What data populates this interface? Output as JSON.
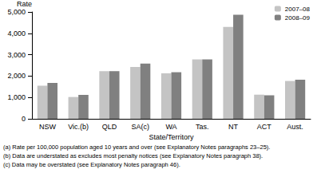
{
  "chart_data": {
    "type": "bar",
    "y_label": "Rate",
    "x_label": "State/Territory",
    "categories": [
      "NSW",
      "Vic.(b)",
      "QLD",
      "SA(c)",
      "WA",
      "Tas.",
      "NT",
      "ACT",
      "Aust."
    ],
    "series": [
      {
        "name": "2007–08",
        "color": "#c4c4c4",
        "values": [
          1550,
          1020,
          2230,
          2430,
          2130,
          2780,
          4300,
          1130,
          1770
        ]
      },
      {
        "name": "2008–09",
        "color": "#808080",
        "values": [
          1680,
          1120,
          2230,
          2580,
          2180,
          2780,
          4870,
          1100,
          1830
        ]
      }
    ],
    "ylim": [
      0,
      5000
    ],
    "yticks": [
      0,
      1000,
      2000,
      3000,
      4000,
      5000
    ],
    "grid": false,
    "legend": "top-right",
    "annotations": [
      "(a) Rate per 100,000 population aged 10 years and over (see Explanatory Notes paragraphs 23–25).",
      "(b) Data are understated as excludes most penalty notices (see Explanatory Notes paragraph 38).",
      "(c) Data may be overstated (see Explanatory Notes paragraph 46)."
    ]
  }
}
